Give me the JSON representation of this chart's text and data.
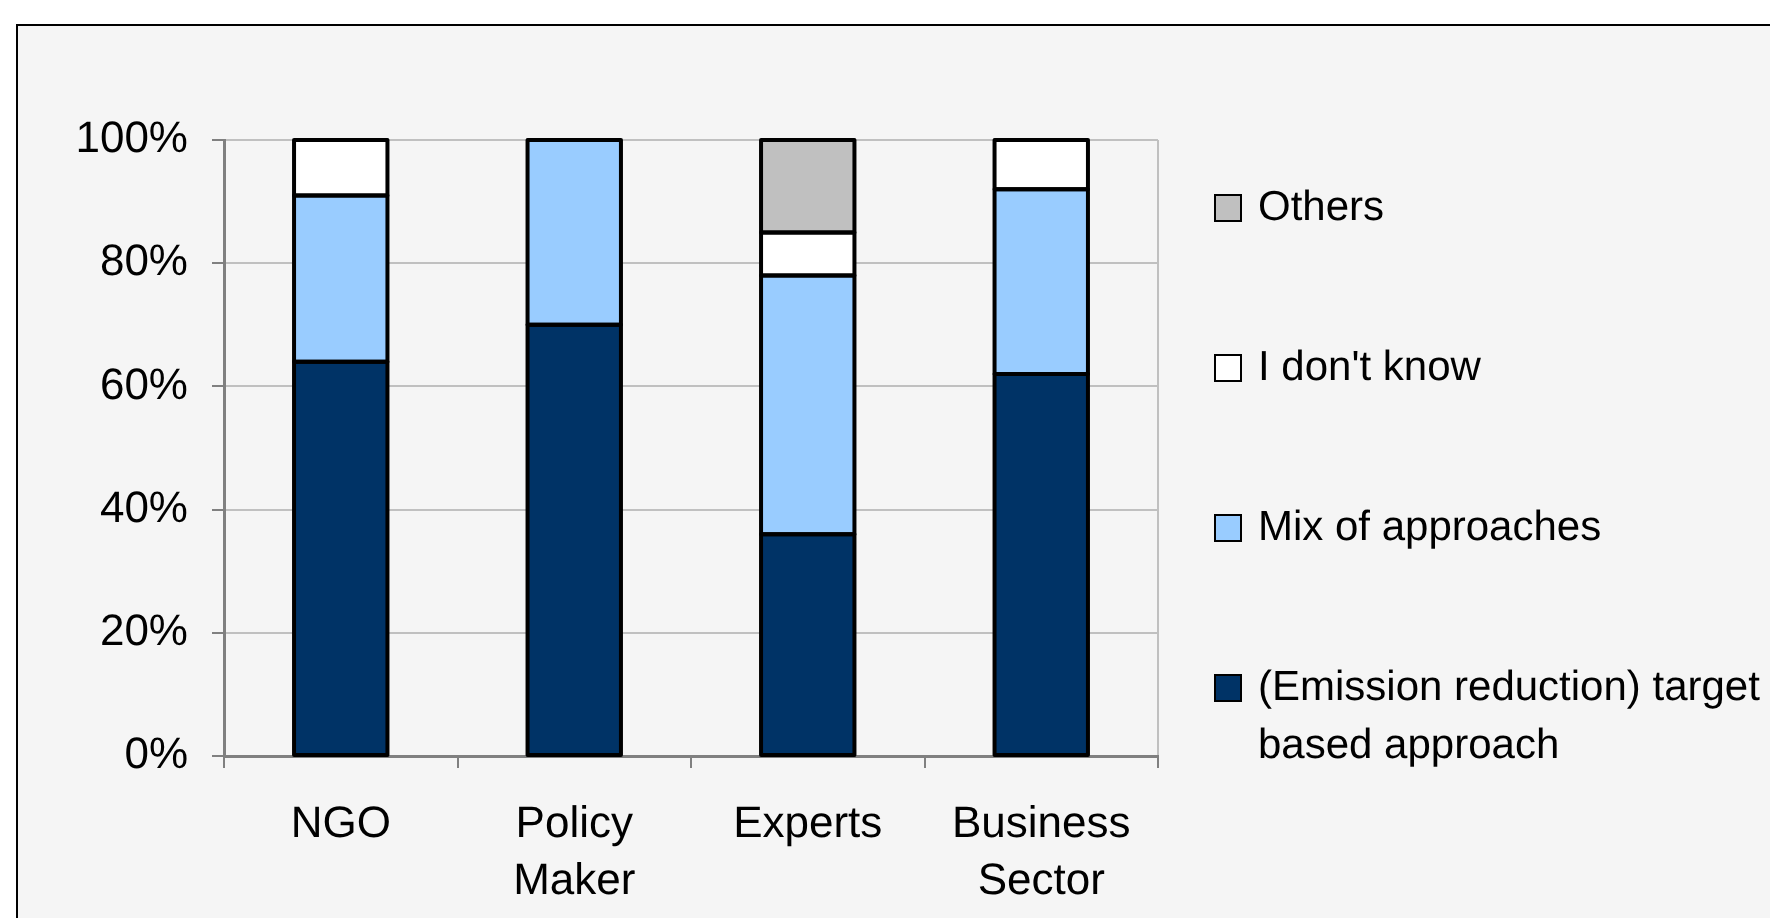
{
  "chart_data": {
    "type": "bar",
    "stacked": true,
    "categories": [
      "NGO",
      "Policy Maker",
      "Experts",
      "Business Sector"
    ],
    "series": [
      {
        "name": "(Emission reduction) target based approach",
        "color": "#003366",
        "values": [
          64,
          70,
          36,
          62
        ]
      },
      {
        "name": "Mix of approaches",
        "color": "#99ccff",
        "values": [
          27,
          30,
          42,
          30
        ]
      },
      {
        "name": "I don't know",
        "color": "#ffffff",
        "values": [
          9,
          0,
          7,
          8
        ]
      },
      {
        "name": "Others",
        "color": "#c0c0c0",
        "values": [
          0,
          0,
          15,
          0
        ]
      }
    ],
    "ylim": [
      0,
      100
    ],
    "yticks": [
      {
        "value": 0,
        "label": "0%"
      },
      {
        "value": 20,
        "label": "20%"
      },
      {
        "value": 40,
        "label": "40%"
      },
      {
        "value": 60,
        "label": "60%"
      },
      {
        "value": 80,
        "label": "80%"
      },
      {
        "value": 100,
        "label": "100%"
      }
    ],
    "grid": "y",
    "legend": "right"
  }
}
